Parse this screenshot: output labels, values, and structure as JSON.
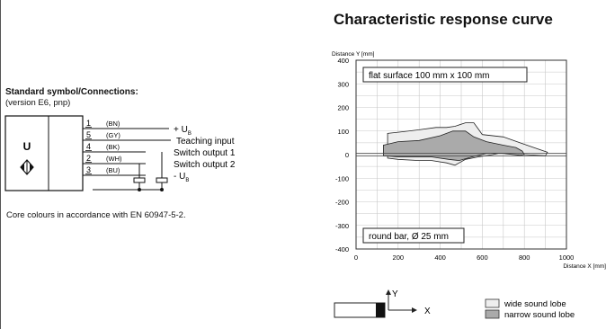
{
  "connections": {
    "title": "Standard symbol/Connections:",
    "subtitle": "(version E6, pnp)",
    "sensor_letter": "U",
    "pins": [
      {
        "num": "1",
        "color": "(BN)",
        "label": "+ U",
        "sub": "B"
      },
      {
        "num": "5",
        "color": "(GY)",
        "label": "Teaching input",
        "sub": ""
      },
      {
        "num": "4",
        "color": "(BK)",
        "label": "Switch output 1",
        "sub": ""
      },
      {
        "num": "2",
        "color": "(WH)",
        "label": "Switch output 2",
        "sub": ""
      },
      {
        "num": "3",
        "color": "(BU)",
        "label": "- U",
        "sub": "B"
      }
    ],
    "note": "Core colours in accordance with EN 60947-5-2."
  },
  "chart": {
    "title": "Characteristic response curve"
  },
  "chart_data": {
    "type": "area",
    "ylabel": "Distance Y [mm]",
    "xlabel": "Distance X [mm]",
    "xlim": [
      0,
      1000
    ],
    "ylim": [
      -400,
      400
    ],
    "x_ticks": [
      0,
      200,
      400,
      600,
      800,
      1000
    ],
    "y_ticks": [
      400,
      300,
      200,
      100,
      0,
      -100,
      -200,
      -300,
      -400
    ],
    "grid": true,
    "annotations": [
      "flat surface 100 mm x 100 mm",
      "round bar, Ø 25 mm"
    ],
    "series": [
      {
        "name": "wide sound lobe",
        "color": "#eeeeee",
        "points": [
          [
            150,
            90
          ],
          [
            200,
            95
          ],
          [
            300,
            105
          ],
          [
            380,
            115
          ],
          [
            430,
            115
          ],
          [
            470,
            120
          ],
          [
            520,
            135
          ],
          [
            560,
            135
          ],
          [
            580,
            110
          ],
          [
            600,
            85
          ],
          [
            700,
            75
          ],
          [
            780,
            50
          ],
          [
            860,
            25
          ],
          [
            910,
            10
          ],
          [
            900,
            -5
          ],
          [
            800,
            0
          ],
          [
            700,
            10
          ],
          [
            650,
            0
          ],
          [
            580,
            -10
          ],
          [
            520,
            -20
          ],
          [
            470,
            -45
          ],
          [
            430,
            -35
          ],
          [
            360,
            -25
          ],
          [
            300,
            -25
          ],
          [
            200,
            -20
          ],
          [
            150,
            -15
          ],
          [
            150,
            90
          ]
        ]
      },
      {
        "name": "narrow sound lobe",
        "color": "#aaaaaa",
        "points": [
          [
            130,
            40
          ],
          [
            200,
            55
          ],
          [
            300,
            60
          ],
          [
            400,
            80
          ],
          [
            460,
            100
          ],
          [
            520,
            100
          ],
          [
            560,
            75
          ],
          [
            620,
            55
          ],
          [
            700,
            40
          ],
          [
            760,
            30
          ],
          [
            790,
            15
          ],
          [
            800,
            0
          ],
          [
            780,
            -3
          ],
          [
            700,
            5
          ],
          [
            620,
            5
          ],
          [
            550,
            -10
          ],
          [
            490,
            -25
          ],
          [
            440,
            -20
          ],
          [
            360,
            -10
          ],
          [
            300,
            -10
          ],
          [
            200,
            -10
          ],
          [
            130,
            -5
          ],
          [
            130,
            40
          ]
        ]
      }
    ]
  },
  "legend": {
    "items": [
      {
        "label": "wide sound lobe",
        "color": "#eeeeee"
      },
      {
        "label": "narrow sound lobe",
        "color": "#aaaaaa"
      }
    ]
  },
  "axes_diagram": {
    "y_label": "Y",
    "x_label": "X"
  }
}
